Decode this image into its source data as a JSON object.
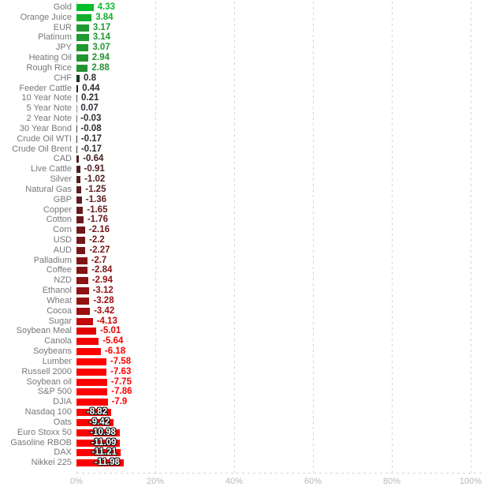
{
  "chart_data": {
    "type": "bar",
    "orientation": "horizontal",
    "title": "",
    "xlabel": "",
    "ylabel": "",
    "unit": "%",
    "x_range": [
      0,
      100
    ],
    "x_ticks": [
      "0%",
      "20%",
      "40%",
      "60%",
      "80%",
      "100%"
    ],
    "grid": "dashed-vertical",
    "legend": "none",
    "colors": {
      "grid": "#d3d4d6",
      "tick_label": "#b6b9bc",
      "category_label": "#75787b",
      "inside_value_label": "#ffffff",
      "max_positive": "#01bf2c",
      "max_negative": "#ff0000"
    },
    "items": [
      {
        "label": "Gold",
        "value": 4.33,
        "display": "4.33",
        "bar_color": "#01bf2c",
        "label_color": "#01bf2c"
      },
      {
        "label": "Orange Juice",
        "value": 3.84,
        "display": "3.84",
        "bar_color": "#12ae2c",
        "label_color": "#12ae2c"
      },
      {
        "label": "EUR",
        "value": 3.17,
        "display": "3.17",
        "bar_color": "#1f9a32",
        "label_color": "#1f9a32"
      },
      {
        "label": "Platinum",
        "value": 3.14,
        "display": "3.14",
        "bar_color": "#1f9932",
        "label_color": "#1f9932"
      },
      {
        "label": "JPY",
        "value": 3.07,
        "display": "3.07",
        "bar_color": "#209831",
        "label_color": "#209831"
      },
      {
        "label": "Heating Oil",
        "value": 2.94,
        "display": "2.94",
        "bar_color": "#229431",
        "label_color": "#229431"
      },
      {
        "label": "Rough Rice",
        "value": 2.88,
        "display": "2.88",
        "bar_color": "#239231",
        "label_color": "#239231"
      },
      {
        "label": "CHF",
        "value": 0.8,
        "display": "0.8",
        "bar_color": "#17341d",
        "label_color": "#2b2e33"
      },
      {
        "label": "Feeder Cattle",
        "value": 0.44,
        "display": "0.44",
        "bar_color": "#222527",
        "label_color": "#2b2e33"
      },
      {
        "label": "10 Year Note",
        "value": 0.21,
        "display": "0.21",
        "bar_color": "#515457",
        "label_color": "#2b2e33"
      },
      {
        "label": "5 Year Note",
        "value": 0.07,
        "display": "0.07",
        "bar_color": "#8b8e91",
        "label_color": "#2b2e33"
      },
      {
        "label": "2 Year Note",
        "value": -0.03,
        "display": "-0.03",
        "bar_color": "#6f6d6e",
        "label_color": "#2b2e33"
      },
      {
        "label": "30 Year Bond",
        "value": -0.08,
        "display": "-0.08",
        "bar_color": "#4d4142",
        "label_color": "#2b2e33"
      },
      {
        "label": "Crude Oil WTI",
        "value": -0.17,
        "display": "-0.17",
        "bar_color": "#413132",
        "label_color": "#2b2e33"
      },
      {
        "label": "Crude Oil Brent",
        "value": -0.17,
        "display": "-0.17",
        "bar_color": "#413132",
        "label_color": "#2b2e33"
      },
      {
        "label": "CAD",
        "value": -0.64,
        "display": "-0.64",
        "bar_color": "#482022",
        "label_color": "#482022"
      },
      {
        "label": "Live Cattle",
        "value": -0.91,
        "display": "-0.91",
        "bar_color": "#4f2022",
        "label_color": "#4f2022"
      },
      {
        "label": "Silver",
        "value": -1.02,
        "display": "-1.02",
        "bar_color": "#531f21",
        "label_color": "#531f21"
      },
      {
        "label": "Natural Gas",
        "value": -1.25,
        "display": "-1.25",
        "bar_color": "#591e20",
        "label_color": "#591e20"
      },
      {
        "label": "GBP",
        "value": -1.36,
        "display": "-1.36",
        "bar_color": "#5c1e1f",
        "label_color": "#5c1e1f"
      },
      {
        "label": "Copper",
        "value": -1.65,
        "display": "-1.65",
        "bar_color": "#641c1e",
        "label_color": "#641c1e"
      },
      {
        "label": "Cotton",
        "value": -1.76,
        "display": "-1.76",
        "bar_color": "#671b1d",
        "label_color": "#671b1d"
      },
      {
        "label": "Corn",
        "value": -2.16,
        "display": "-2.16",
        "bar_color": "#721819",
        "label_color": "#721819"
      },
      {
        "label": "USD",
        "value": -2.2,
        "display": "-2.2",
        "bar_color": "#731819",
        "label_color": "#731819"
      },
      {
        "label": "AUD",
        "value": -2.27,
        "display": "-2.27",
        "bar_color": "#751718",
        "label_color": "#751718"
      },
      {
        "label": "Palladium",
        "value": -2.7,
        "display": "-2.7",
        "bar_color": "#801415",
        "label_color": "#801415"
      },
      {
        "label": "Coffee",
        "value": -2.84,
        "display": "-2.84",
        "bar_color": "#841314",
        "label_color": "#841314"
      },
      {
        "label": "NZD",
        "value": -2.94,
        "display": "-2.94",
        "bar_color": "#8c1213",
        "label_color": "#8c1213"
      },
      {
        "label": "Ethanol",
        "value": -3.12,
        "display": "-3.12",
        "bar_color": "#921112",
        "label_color": "#921112"
      },
      {
        "label": "Wheat",
        "value": -3.28,
        "display": "-3.28",
        "bar_color": "#971011",
        "label_color": "#971011"
      },
      {
        "label": "Cocoa",
        "value": -3.42,
        "display": "-3.42",
        "bar_color": "#9c0f10",
        "label_color": "#9c0f10"
      },
      {
        "label": "Sugar",
        "value": -4.13,
        "display": "-4.13",
        "bar_color": "#c30909",
        "label_color": "#c30909"
      },
      {
        "label": "Soybean Meal",
        "value": -5.01,
        "display": "-5.01",
        "bar_color": "#e30404",
        "label_color": "#e30404"
      },
      {
        "label": "Canola",
        "value": -5.64,
        "display": "-5.64",
        "bar_color": "#f40101",
        "label_color": "#f40101"
      },
      {
        "label": "Soybeans",
        "value": -6.18,
        "display": "-6.18",
        "bar_color": "#fd0000",
        "label_color": "#fd0000"
      },
      {
        "label": "Lumber",
        "value": -7.58,
        "display": "-7.58",
        "bar_color": "#ff0000",
        "label_color": "#ff0000"
      },
      {
        "label": "Russell 2000",
        "value": -7.63,
        "display": "-7.63",
        "bar_color": "#ff0000",
        "label_color": "#ff0000"
      },
      {
        "label": "Soybean oil",
        "value": -7.75,
        "display": "-7.75",
        "bar_color": "#ff0000",
        "label_color": "#ff0000"
      },
      {
        "label": "S&P 500",
        "value": -7.86,
        "display": "-7.86",
        "bar_color": "#ff0000",
        "label_color": "#ff0000"
      },
      {
        "label": "DJIA",
        "value": -7.9,
        "display": "-7.9",
        "bar_color": "#ff0000",
        "label_color": "#ff0000"
      },
      {
        "label": "Nasdaq 100",
        "value": -8.82,
        "display": "-8.82",
        "bar_color": "#ff0000",
        "label_color": "#ffffff"
      },
      {
        "label": "Oats",
        "value": -9.42,
        "display": "-9.42",
        "bar_color": "#ff0000",
        "label_color": "#ffffff"
      },
      {
        "label": "Euro Stoxx 50",
        "value": -10.98,
        "display": "-10.98",
        "bar_color": "#ff0000",
        "label_color": "#ffffff"
      },
      {
        "label": "Gasoline RBOB",
        "value": -11.09,
        "display": "-11.09",
        "bar_color": "#ff0000",
        "label_color": "#ffffff"
      },
      {
        "label": "DAX",
        "value": -11.21,
        "display": "-11.21",
        "bar_color": "#ff0000",
        "label_color": "#ffffff"
      },
      {
        "label": "Nikkei 225",
        "value": -11.98,
        "display": "-11.98",
        "bar_color": "#ff0000",
        "label_color": "#ffffff"
      }
    ]
  }
}
